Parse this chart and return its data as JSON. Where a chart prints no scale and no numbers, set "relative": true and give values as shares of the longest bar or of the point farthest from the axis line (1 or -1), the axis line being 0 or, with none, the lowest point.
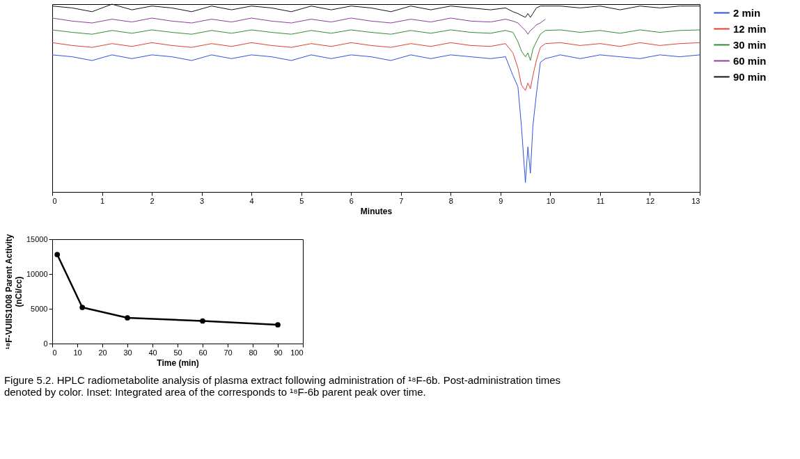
{
  "chart_data": [
    {
      "type": "line",
      "relative": true,
      "xlabel": "Minutes",
      "xlim": [
        0,
        13
      ],
      "xticks": [
        0,
        1,
        2,
        3,
        4,
        5,
        6,
        7,
        8,
        9,
        10,
        11,
        12,
        13
      ],
      "grid": false,
      "legend": "right",
      "marker": "none",
      "line_style": "solid",
      "x": [
        0,
        0.4,
        0.8,
        1.2,
        1.6,
        2,
        2.4,
        2.8,
        3.2,
        3.6,
        4,
        4.4,
        4.8,
        5.2,
        5.6,
        6,
        6.4,
        6.8,
        7.2,
        7.6,
        8,
        8.4,
        8.8,
        9.1,
        9.25,
        9.35,
        9.42,
        9.5,
        9.55,
        9.6,
        9.65,
        9.72,
        9.8,
        9.9,
        10.2,
        10.6,
        11,
        11.4,
        11.8,
        12.2,
        12.6,
        13
      ],
      "series": [
        {
          "name": "2 min",
          "color": "#3050e0",
          "values": [
            0.73,
            0.72,
            0.7,
            0.73,
            0.71,
            0.73,
            0.72,
            0.7,
            0.73,
            0.71,
            0.73,
            0.72,
            0.7,
            0.73,
            0.71,
            0.73,
            0.72,
            0.7,
            0.73,
            0.71,
            0.73,
            0.72,
            0.71,
            0.72,
            0.62,
            0.56,
            0.35,
            0.05,
            0.24,
            0.1,
            0.35,
            0.52,
            0.69,
            0.71,
            0.73,
            0.71,
            0.73,
            0.72,
            0.71,
            0.73,
            0.72,
            0.73
          ]
        },
        {
          "name": "12 min",
          "color": "#e04030",
          "values": [
            0.795,
            0.78,
            0.77,
            0.79,
            0.775,
            0.795,
            0.78,
            0.77,
            0.79,
            0.775,
            0.795,
            0.78,
            0.77,
            0.79,
            0.775,
            0.795,
            0.78,
            0.77,
            0.79,
            0.775,
            0.795,
            0.78,
            0.775,
            0.79,
            0.74,
            0.66,
            0.57,
            0.54,
            0.58,
            0.55,
            0.62,
            0.7,
            0.77,
            0.79,
            0.795,
            0.78,
            0.79,
            0.775,
            0.795,
            0.78,
            0.79,
            0.795
          ]
        },
        {
          "name": "30 min",
          "color": "#2e8b2e",
          "values": [
            0.863,
            0.85,
            0.84,
            0.86,
            0.845,
            0.863,
            0.85,
            0.84,
            0.86,
            0.845,
            0.863,
            0.85,
            0.84,
            0.86,
            0.845,
            0.863,
            0.85,
            0.84,
            0.86,
            0.845,
            0.863,
            0.85,
            0.845,
            0.86,
            0.85,
            0.8,
            0.75,
            0.72,
            0.74,
            0.7,
            0.76,
            0.8,
            0.84,
            0.86,
            0.863,
            0.85,
            0.86,
            0.845,
            0.863,
            0.85,
            0.86,
            0.863
          ]
        },
        {
          "name": "60 min",
          "color": "#8e3a9e",
          "values": [
            0.926,
            0.91,
            0.9,
            0.92,
            0.905,
            0.926,
            0.91,
            0.9,
            0.92,
            0.905,
            0.926,
            0.91,
            0.9,
            0.92,
            0.905,
            0.926,
            0.91,
            0.9,
            0.92,
            0.905,
            0.926,
            0.91,
            0.905,
            0.92,
            0.91,
            0.9,
            0.88,
            0.86,
            0.84,
            0.86,
            0.87,
            0.89,
            0.9,
            0.92,
            null,
            null,
            null,
            null,
            null,
            null,
            null,
            null
          ]
        },
        {
          "name": "90 min",
          "color": "#111111",
          "values": [
            0.99,
            0.98,
            0.96,
            1.0,
            0.97,
            0.99,
            0.98,
            0.96,
            0.99,
            0.97,
            0.99,
            0.98,
            0.96,
            0.99,
            0.97,
            0.99,
            0.98,
            0.96,
            0.99,
            0.97,
            0.99,
            0.98,
            0.97,
            0.98,
            0.96,
            0.95,
            0.94,
            0.93,
            0.95,
            0.93,
            0.95,
            0.98,
            0.99,
            0.99,
            0.99,
            0.98,
            0.99,
            0.97,
            0.99,
            0.98,
            0.99,
            0.99
          ]
        }
      ],
      "annotations": [
        "Figure 5.2. HPLC radiometabolite analysis of plasma extract following administration of ¹⁸F-6b. Post-administration times denoted by color. Inset: Integrated area of the corresponds to ¹⁸F-6b parent peak over time."
      ]
    },
    {
      "type": "line",
      "xlabel": "Time (min)",
      "ylabel": "¹⁸F-VUIIS1008 Parent Activity\n(nCi/cc)",
      "xlim": [
        0,
        100
      ],
      "xticks": [
        0,
        10,
        20,
        30,
        40,
        50,
        60,
        70,
        80,
        90,
        100
      ],
      "ylim": [
        0,
        15000
      ],
      "yticks": [
        0,
        5000,
        10000,
        15000
      ],
      "grid": false,
      "marker": "circle",
      "x": [
        2,
        12,
        30,
        60,
        90
      ],
      "series": [
        {
          "color": "#000000",
          "values": [
            12800,
            5200,
            3700,
            3250,
            2700
          ]
        }
      ]
    }
  ]
}
